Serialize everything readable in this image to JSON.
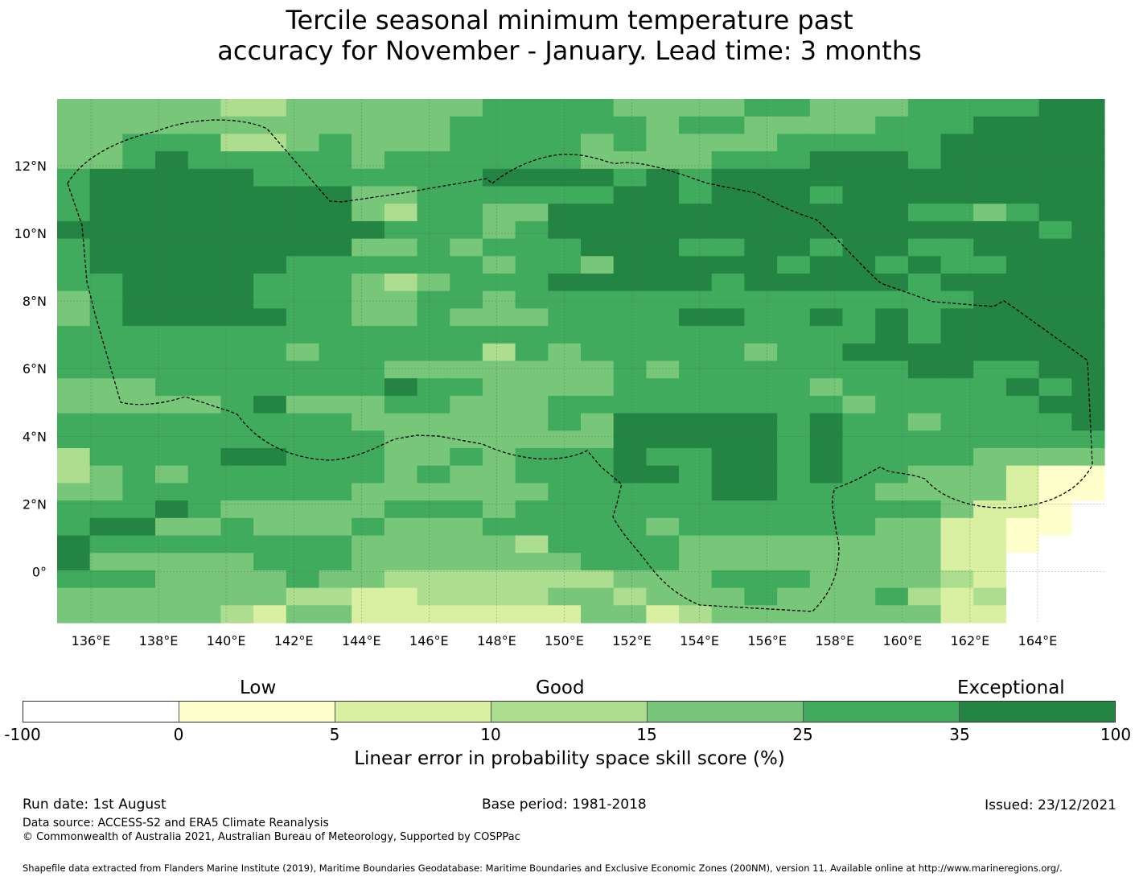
{
  "title_line1": "Tercile seasonal minimum temperature past",
  "title_line2": "accuracy for November - January. Lead time: 3 months",
  "map": {
    "lon_labels": [
      "136°E",
      "138°E",
      "140°E",
      "142°E",
      "144°E",
      "146°E",
      "148°E",
      "150°E",
      "152°E",
      "154°E",
      "156°E",
      "158°E",
      "160°E",
      "162°E",
      "164°E"
    ],
    "lat_labels": [
      "12°N",
      "10°N",
      "8°N",
      "6°N",
      "4°N",
      "2°N",
      "0°"
    ],
    "palette": [
      "#ffffff",
      "#ffffcc",
      "#d9f0a3",
      "#addd8e",
      "#78c679",
      "#41ab5d",
      "#238443"
    ],
    "rows": [
      "44444334444445555444455444555566",
      "44444444444455555545544445556666",
      "44555334544455554544445555566666",
      "44565555545555554444555666566666",
      "56666655555556666565666666666666",
      "56666666644555555665666566666666",
      "56666666643554466666666666554566",
      "66666666665554566666666666666656",
      "56666666644545556665566566556666",
      "56666665555554554666665665655666",
      "55666655543455566666566666566666",
      "45666655544554555555555555556666",
      "45666665544544455556655656566666",
      "55555555555555555555555556566666",
      "55555554555553545555545566666666",
      "55555555554444444545555555665566",
      "44455555556554444555555455555656",
      "44444564445544455555555545555566",
      "55555555544444454666665655455556",
      "55555555554444444666665655555555",
      "35555665554454555655665655554444",
      "34545555554544555665665655444211",
      "44555555544444455555665554444211",
      "55565444445554555555555555542210",
      "56644544454445555545555554422110",
      "65555555544444355554444444422100",
      "64444455544444445554444444422000",
      "55544445443333333444555444432000",
      "44444443322333344344454445323000",
      "44444324422222224423444444422000"
    ]
  },
  "colorbar": {
    "heads": [
      "Low",
      "Good",
      "Exceptional"
    ],
    "ticks": [
      "-100",
      "0",
      "5",
      "10",
      "15",
      "25",
      "35",
      "100"
    ],
    "colors": [
      "#ffffff",
      "#ffffcc",
      "#d9f0a3",
      "#addd8e",
      "#78c679",
      "#41ab5d",
      "#238443"
    ],
    "label": "Linear error in probability space skill score (%)"
  },
  "footer": {
    "run_date": "Run date: 1st August",
    "base_period": "Base period: 1981-2018",
    "issued": "Issued: 23/12/2021",
    "data_source": "Data source: ACCESS-S2 and ERA5 Climate Reanalysis",
    "copyright": "© Commonwealth of Australia 2021, Australian Bureau of Meteorology, Supported by COSPPac",
    "shapefile": "Shapefile data extracted from Flanders Marine Institute (2019), Maritime Boundaries Geodatabase: Maritime Boundaries and Exclusive Economic Zones (200NM), version 11. Available online at http://www.marineregions.org/."
  }
}
